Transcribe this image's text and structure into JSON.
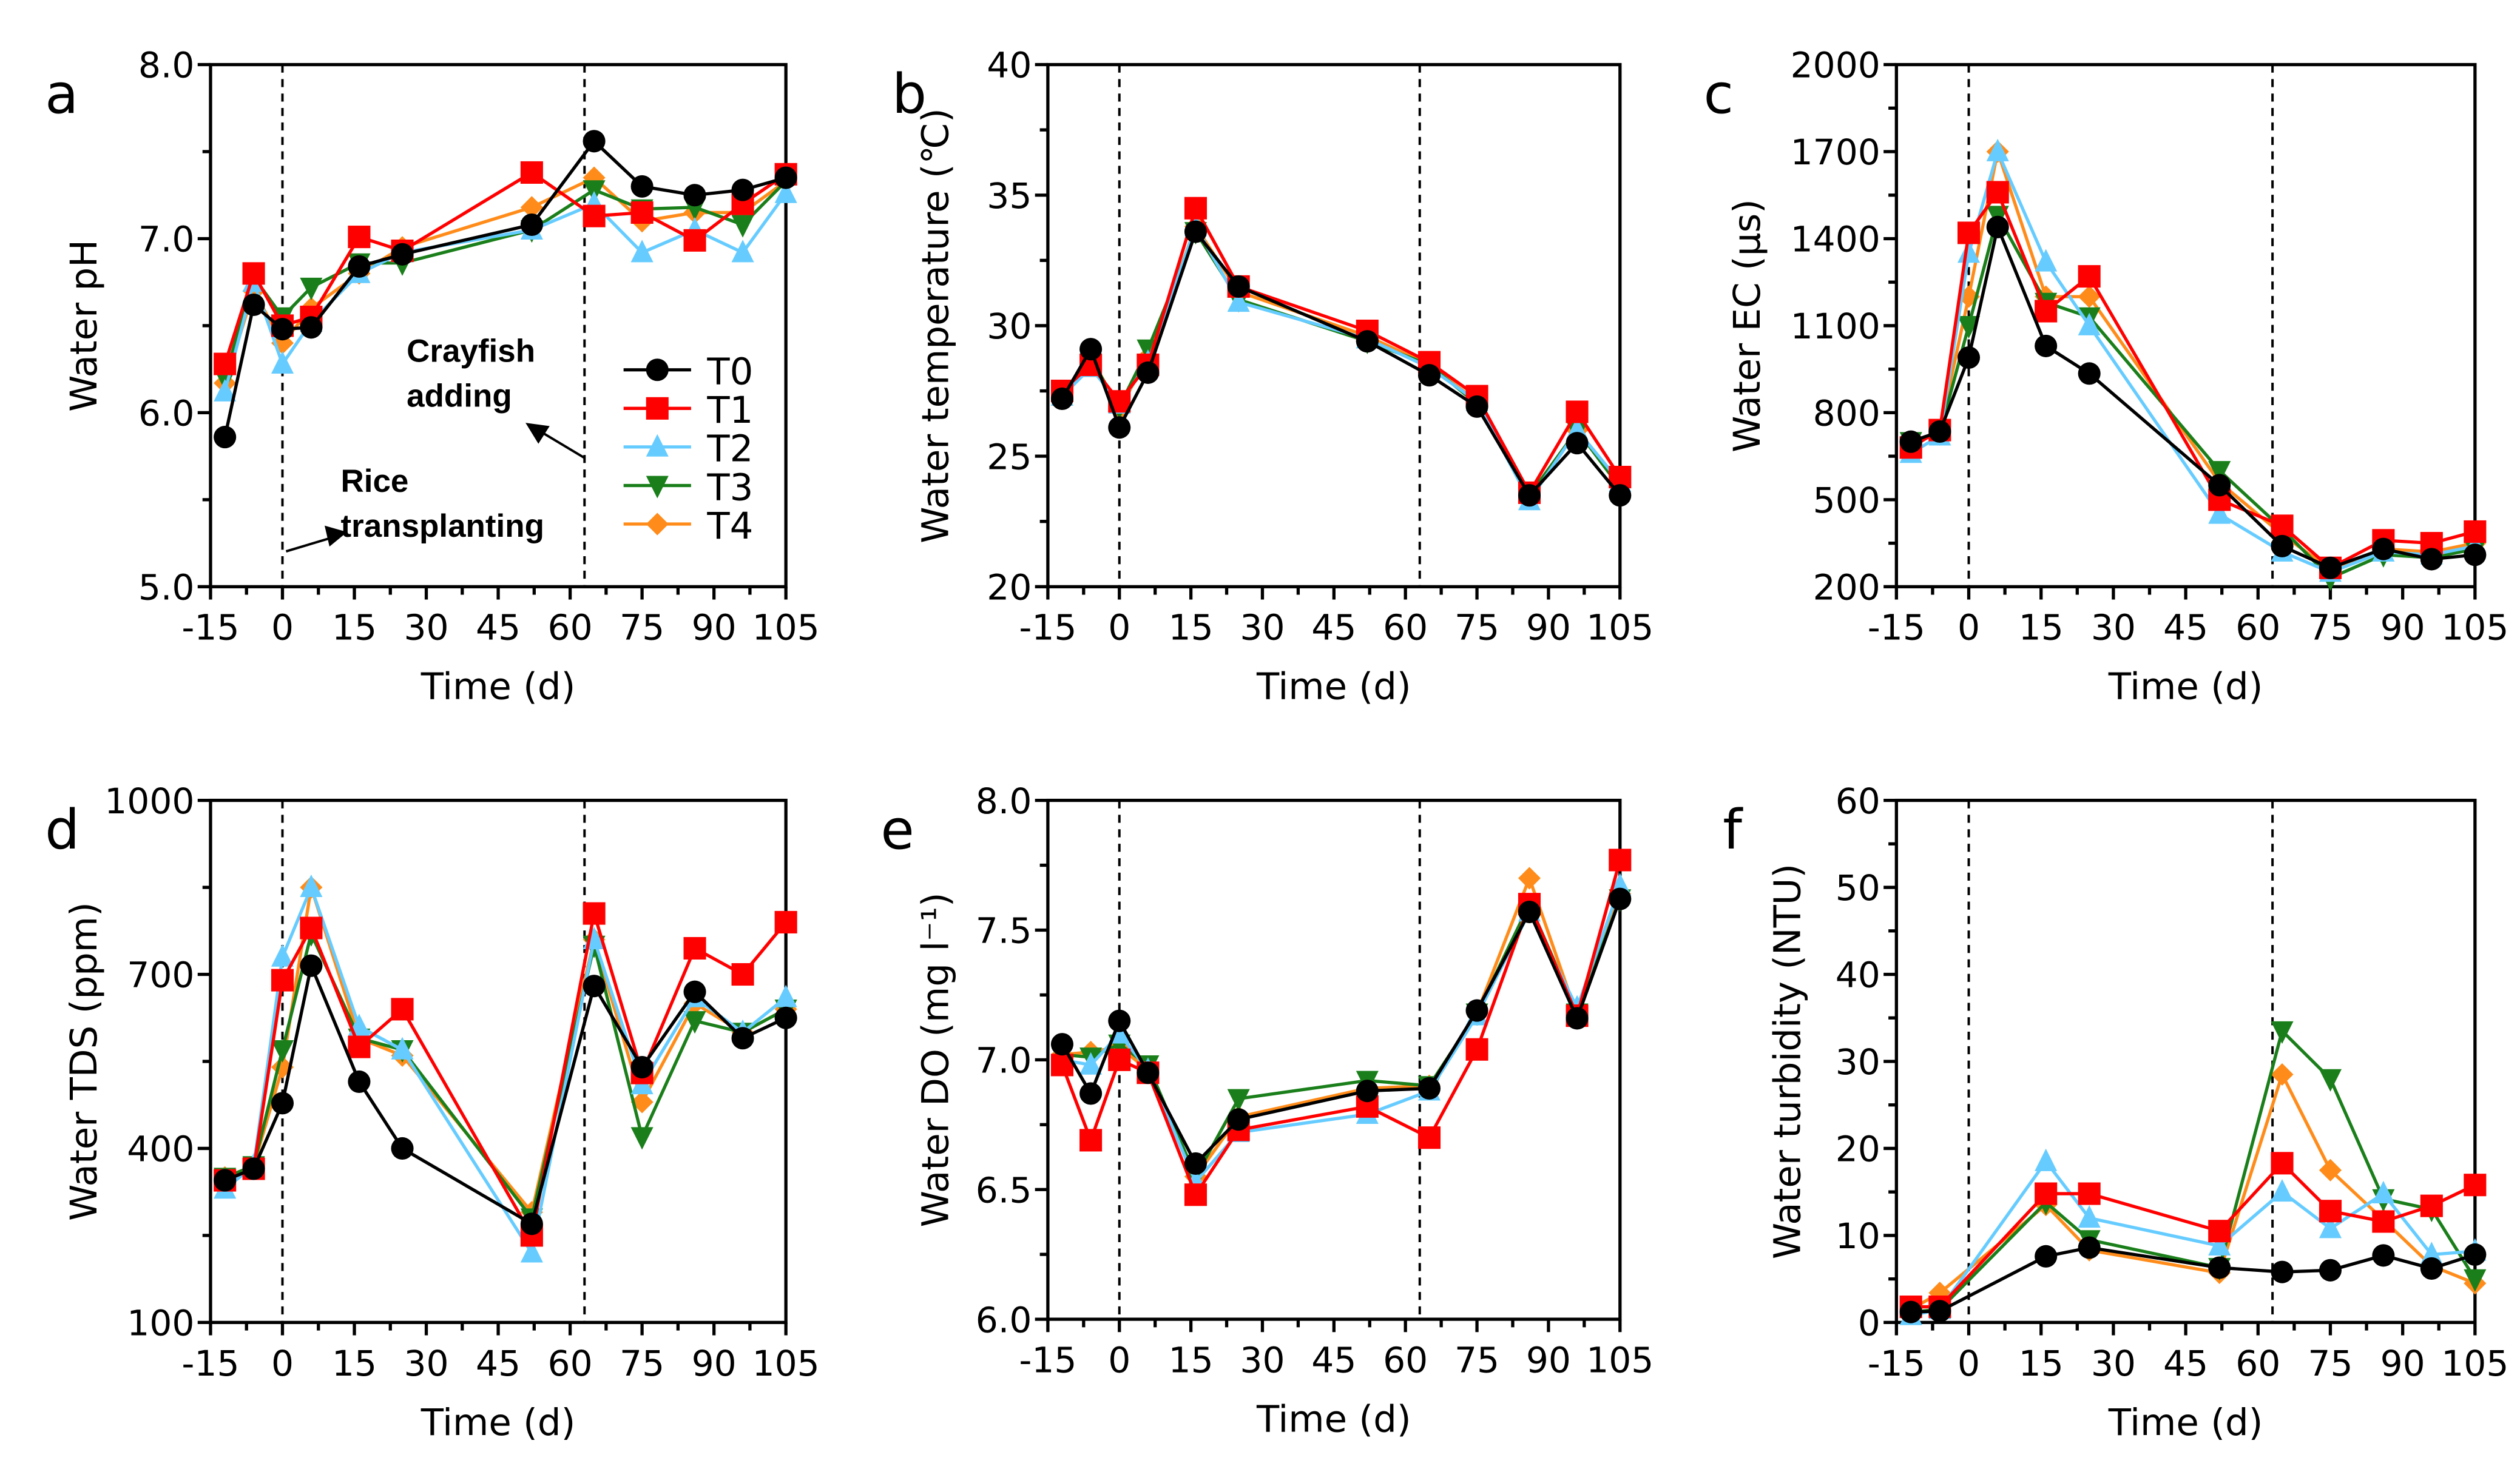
{
  "colors": {
    "T0": "#000000",
    "T1": "#ff0000",
    "T2": "#66ccff",
    "T3": "#1a7f1a",
    "T4": "#ff8c1a"
  },
  "markers": {
    "T0": "circle",
    "T1": "square",
    "T2": "triangle-up",
    "T3": "triangle-down",
    "T4": "diamond"
  },
  "legend": [
    "T0",
    "T1",
    "T2",
    "T3",
    "T4"
  ],
  "annotations": {
    "crayfish": [
      "Crayfish",
      "adding"
    ],
    "rice": [
      "Rice",
      "transplanting"
    ]
  },
  "chart_data": [
    {
      "panel": "a",
      "type": "line",
      "xlabel": "Time (d)",
      "ylabel": "Water pH",
      "xlim": [
        -15,
        105
      ],
      "ylim": [
        5,
        8
      ],
      "xticks": [
        "-15",
        "0",
        "15",
        "30",
        "45",
        "60",
        "75",
        "90",
        "105"
      ],
      "yticks": [
        "5.0",
        "6.0",
        "7.0",
        "8.0"
      ],
      "ytick_values": [
        5,
        6,
        7,
        8
      ],
      "ymajor": 1,
      "vlines": [
        0,
        63
      ],
      "x": [
        -12,
        -6,
        0,
        6,
        16,
        25,
        52,
        65,
        75,
        86,
        96,
        105
      ],
      "series": [
        {
          "name": "T0",
          "values": [
            5.86,
            6.62,
            6.48,
            6.49,
            6.84,
            6.91,
            7.08,
            7.56,
            7.3,
            7.25,
            7.28,
            7.35
          ]
        },
        {
          "name": "T1",
          "values": [
            6.28,
            6.8,
            6.5,
            6.55,
            7.01,
            6.93,
            7.38,
            7.13,
            7.15,
            6.99,
            7.2,
            7.37
          ]
        },
        {
          "name": "T2",
          "values": [
            6.12,
            6.75,
            6.28,
            6.52,
            6.8,
            6.92,
            7.05,
            7.2,
            6.92,
            7.05,
            6.92,
            7.26
          ]
        },
        {
          "name": "T3",
          "values": [
            6.2,
            6.78,
            6.55,
            6.72,
            6.86,
            6.86,
            7.05,
            7.28,
            7.17,
            7.18,
            7.08,
            7.33
          ]
        },
        {
          "name": "T4",
          "values": [
            6.17,
            6.7,
            6.4,
            6.6,
            6.8,
            6.95,
            7.18,
            7.35,
            7.1,
            7.15,
            7.15,
            7.33
          ]
        }
      ]
    },
    {
      "panel": "b",
      "type": "line",
      "xlabel": "Time (d)",
      "ylabel": "Water temperature (℃)",
      "xlim": [
        -15,
        105
      ],
      "ylim": [
        20,
        40
      ],
      "xticks": [
        "-15",
        "0",
        "15",
        "30",
        "45",
        "60",
        "75",
        "90",
        "105"
      ],
      "yticks": [
        "20",
        "25",
        "30",
        "35",
        "40"
      ],
      "ytick_values": [
        20,
        25,
        30,
        35,
        40
      ],
      "ymajor": 5,
      "vlines": [
        0,
        63
      ],
      "x": [
        -12,
        -6,
        0,
        6,
        16,
        25,
        52,
        65,
        75,
        86,
        96,
        105
      ],
      "series": [
        {
          "name": "T0",
          "values": [
            27.2,
            29.1,
            26.1,
            28.2,
            33.6,
            31.5,
            29.4,
            28.1,
            26.9,
            23.5,
            25.5,
            23.5
          ]
        },
        {
          "name": "T1",
          "values": [
            27.5,
            28.5,
            27.1,
            28.5,
            34.5,
            31.5,
            29.8,
            28.6,
            27.3,
            23.6,
            26.7,
            24.2
          ]
        },
        {
          "name": "T2",
          "values": [
            27.3,
            28.4,
            27.0,
            28.6,
            33.8,
            30.9,
            29.5,
            28.4,
            27.1,
            23.3,
            26.0,
            24.0
          ]
        },
        {
          "name": "T3",
          "values": [
            27.4,
            28.7,
            26.9,
            29.1,
            33.6,
            31.0,
            29.4,
            28.5,
            27.0,
            23.5,
            26.0,
            23.8
          ]
        },
        {
          "name": "T4",
          "values": [
            27.4,
            28.8,
            26.8,
            28.8,
            33.8,
            31.3,
            29.6,
            28.5,
            27.1,
            23.5,
            26.0,
            24.0
          ]
        }
      ]
    },
    {
      "panel": "c",
      "type": "line",
      "xlabel": "Time (d)",
      "ylabel": "Water EC (μs)",
      "xlim": [
        -15,
        105
      ],
      "ylim": [
        200,
        2000
      ],
      "xticks": [
        "-15",
        "0",
        "15",
        "30",
        "45",
        "60",
        "75",
        "90",
        "105"
      ],
      "yticks": [
        "200",
        "500",
        "800",
        "1100",
        "1400",
        "1700",
        "2000"
      ],
      "ytick_values": [
        200,
        500,
        800,
        1100,
        1400,
        1700,
        2000
      ],
      "ymajor": 300,
      "vlines": [
        0,
        63
      ],
      "x": [
        -12,
        -6,
        0,
        6,
        16,
        25,
        52,
        65,
        75,
        86,
        96,
        105
      ],
      "series": [
        {
          "name": "T0",
          "values": [
            700,
            735,
            990,
            1440,
            1030,
            935,
            550,
            340,
            265,
            330,
            295,
            310
          ]
        },
        {
          "name": "T1",
          "values": [
            680,
            740,
            1420,
            1560,
            1150,
            1270,
            500,
            410,
            265,
            360,
            350,
            390
          ]
        },
        {
          "name": "T2",
          "values": [
            660,
            720,
            1350,
            1700,
            1320,
            1100,
            450,
            320,
            250,
            320,
            310,
            340
          ]
        },
        {
          "name": "T3",
          "values": [
            700,
            730,
            1100,
            1480,
            1180,
            1130,
            600,
            400,
            230,
            310,
            300,
            330
          ]
        },
        {
          "name": "T4",
          "values": [
            690,
            740,
            1200,
            1700,
            1200,
            1200,
            560,
            380,
            260,
            330,
            320,
            350
          ]
        }
      ]
    },
    {
      "panel": "d",
      "type": "line",
      "xlabel": "Time (d)",
      "ylabel": "Water TDS (ppm)",
      "xlim": [
        -15,
        105
      ],
      "ylim": [
        100,
        1000
      ],
      "xticks": [
        "-15",
        "0",
        "15",
        "30",
        "45",
        "60",
        "75",
        "90",
        "105"
      ],
      "yticks": [
        "100",
        "400",
        "700",
        "1000"
      ],
      "ytick_values": [
        100,
        400,
        700,
        1000
      ],
      "ymajor": 300,
      "vlines": [
        0,
        63
      ],
      "x": [
        -12,
        -6,
        0,
        6,
        16,
        25,
        52,
        65,
        75,
        86,
        96,
        105
      ],
      "series": [
        {
          "name": "T0",
          "values": [
            345,
            365,
            478,
            715,
            515,
            400,
            270,
            680,
            540,
            670,
            590,
            625
          ]
        },
        {
          "name": "T1",
          "values": [
            345,
            365,
            690,
            780,
            575,
            640,
            250,
            805,
            530,
            745,
            700,
            790
          ]
        },
        {
          "name": "T2",
          "values": [
            330,
            370,
            730,
            850,
            610,
            570,
            220,
            760,
            510,
            660,
            600,
            660
          ]
        },
        {
          "name": "T3",
          "values": [
            350,
            370,
            570,
            770,
            590,
            570,
            280,
            750,
            420,
            620,
            600,
            640
          ]
        },
        {
          "name": "T4",
          "values": [
            350,
            370,
            540,
            850,
            590,
            560,
            290,
            760,
            480,
            650,
            600,
            640
          ]
        }
      ]
    },
    {
      "panel": "e",
      "type": "line",
      "xlabel": "Time (d)",
      "ylabel": "Water DO (mg l⁻¹)",
      "xlim": [
        -15,
        105
      ],
      "ylim": [
        6,
        8
      ],
      "xticks": [
        "-15",
        "0",
        "15",
        "30",
        "45",
        "60",
        "75",
        "90",
        "105"
      ],
      "yticks": [
        "6.0",
        "6.5",
        "7.0",
        "7.5",
        "8.0"
      ],
      "ytick_values": [
        6,
        6.5,
        7,
        7.5,
        8
      ],
      "ymajor": 0.5,
      "vlines": [
        0,
        63
      ],
      "x": [
        -12,
        -6,
        0,
        6,
        16,
        25,
        52,
        65,
        75,
        86,
        96,
        105
      ],
      "series": [
        {
          "name": "T0",
          "values": [
            7.06,
            6.87,
            7.15,
            6.95,
            6.6,
            6.77,
            6.88,
            6.89,
            7.19,
            7.57,
            7.16,
            7.62
          ]
        },
        {
          "name": "T1",
          "values": [
            6.98,
            6.69,
            7.0,
            6.95,
            6.48,
            6.73,
            6.82,
            6.7,
            7.04,
            7.6,
            7.17,
            7.77
          ]
        },
        {
          "name": "T2",
          "values": [
            7.0,
            6.98,
            7.1,
            6.96,
            6.53,
            6.72,
            6.79,
            6.88,
            7.17,
            7.57,
            7.2,
            7.67
          ]
        },
        {
          "name": "T3",
          "values": [
            7.02,
            7.01,
            7.06,
            6.98,
            6.55,
            6.85,
            6.92,
            6.9,
            7.18,
            7.6,
            7.18,
            7.62
          ]
        },
        {
          "name": "T4",
          "values": [
            7.02,
            7.03,
            7.05,
            6.96,
            6.55,
            6.78,
            6.89,
            6.9,
            7.18,
            7.7,
            7.17,
            7.64
          ]
        }
      ]
    },
    {
      "panel": "f",
      "type": "line",
      "xlabel": "Time (d)",
      "ylabel": "Water turbidity (NTU)",
      "xlim": [
        -15,
        105
      ],
      "ylim": [
        0,
        60
      ],
      "xticks": [
        "-15",
        "0",
        "15",
        "30",
        "45",
        "60",
        "75",
        "90",
        "105"
      ],
      "yticks": [
        "0",
        "10",
        "20",
        "30",
        "40",
        "50",
        "60"
      ],
      "ytick_values": [
        0,
        10,
        20,
        30,
        40,
        50,
        60
      ],
      "ymajor": 10,
      "vlines": [
        0,
        63
      ],
      "x": [
        -12,
        -6,
        16,
        25,
        52,
        65,
        75,
        86,
        96,
        105
      ],
      "series": [
        {
          "name": "T0",
          "values": [
            1.2,
            1.3,
            7.6,
            8.6,
            6.3,
            5.8,
            6.0,
            7.7,
            6.2,
            7.8
          ]
        },
        {
          "name": "T1",
          "values": [
            1.8,
            1.8,
            14.8,
            14.8,
            10.5,
            18.3,
            12.8,
            11.6,
            13.4,
            15.8
          ]
        },
        {
          "name": "T2",
          "values": [
            0.8,
            1.5,
            18.5,
            12.0,
            8.8,
            15.0,
            10.8,
            14.8,
            7.8,
            8.2
          ]
        },
        {
          "name": "T3",
          "values": [
            1.2,
            1.5,
            13.8,
            9.5,
            6.3,
            33.5,
            28.0,
            14.2,
            13.0,
            5.0
          ]
        },
        {
          "name": "T4",
          "values": [
            1.5,
            3.4,
            13.5,
            8.3,
            5.7,
            28.5,
            17.5,
            11.8,
            6.5,
            4.5
          ]
        }
      ]
    }
  ]
}
